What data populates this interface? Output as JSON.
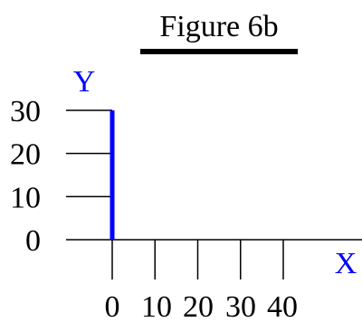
{
  "colors": {
    "axis": "#000000",
    "accent": "#0000ff"
  },
  "chart_data": {
    "type": "line",
    "title": "Figure 6b",
    "xlabel": "X",
    "ylabel": "Y",
    "x_ticks": [
      "0",
      "10",
      "20",
      "30",
      "40"
    ],
    "y_ticks": [
      "0",
      "10",
      "20",
      "30"
    ],
    "xlim": [
      0,
      40
    ],
    "ylim": [
      0,
      30
    ],
    "grid": false,
    "series": [
      {
        "points": [
          [
            0,
            0
          ],
          [
            0,
            30
          ]
        ]
      }
    ]
  }
}
